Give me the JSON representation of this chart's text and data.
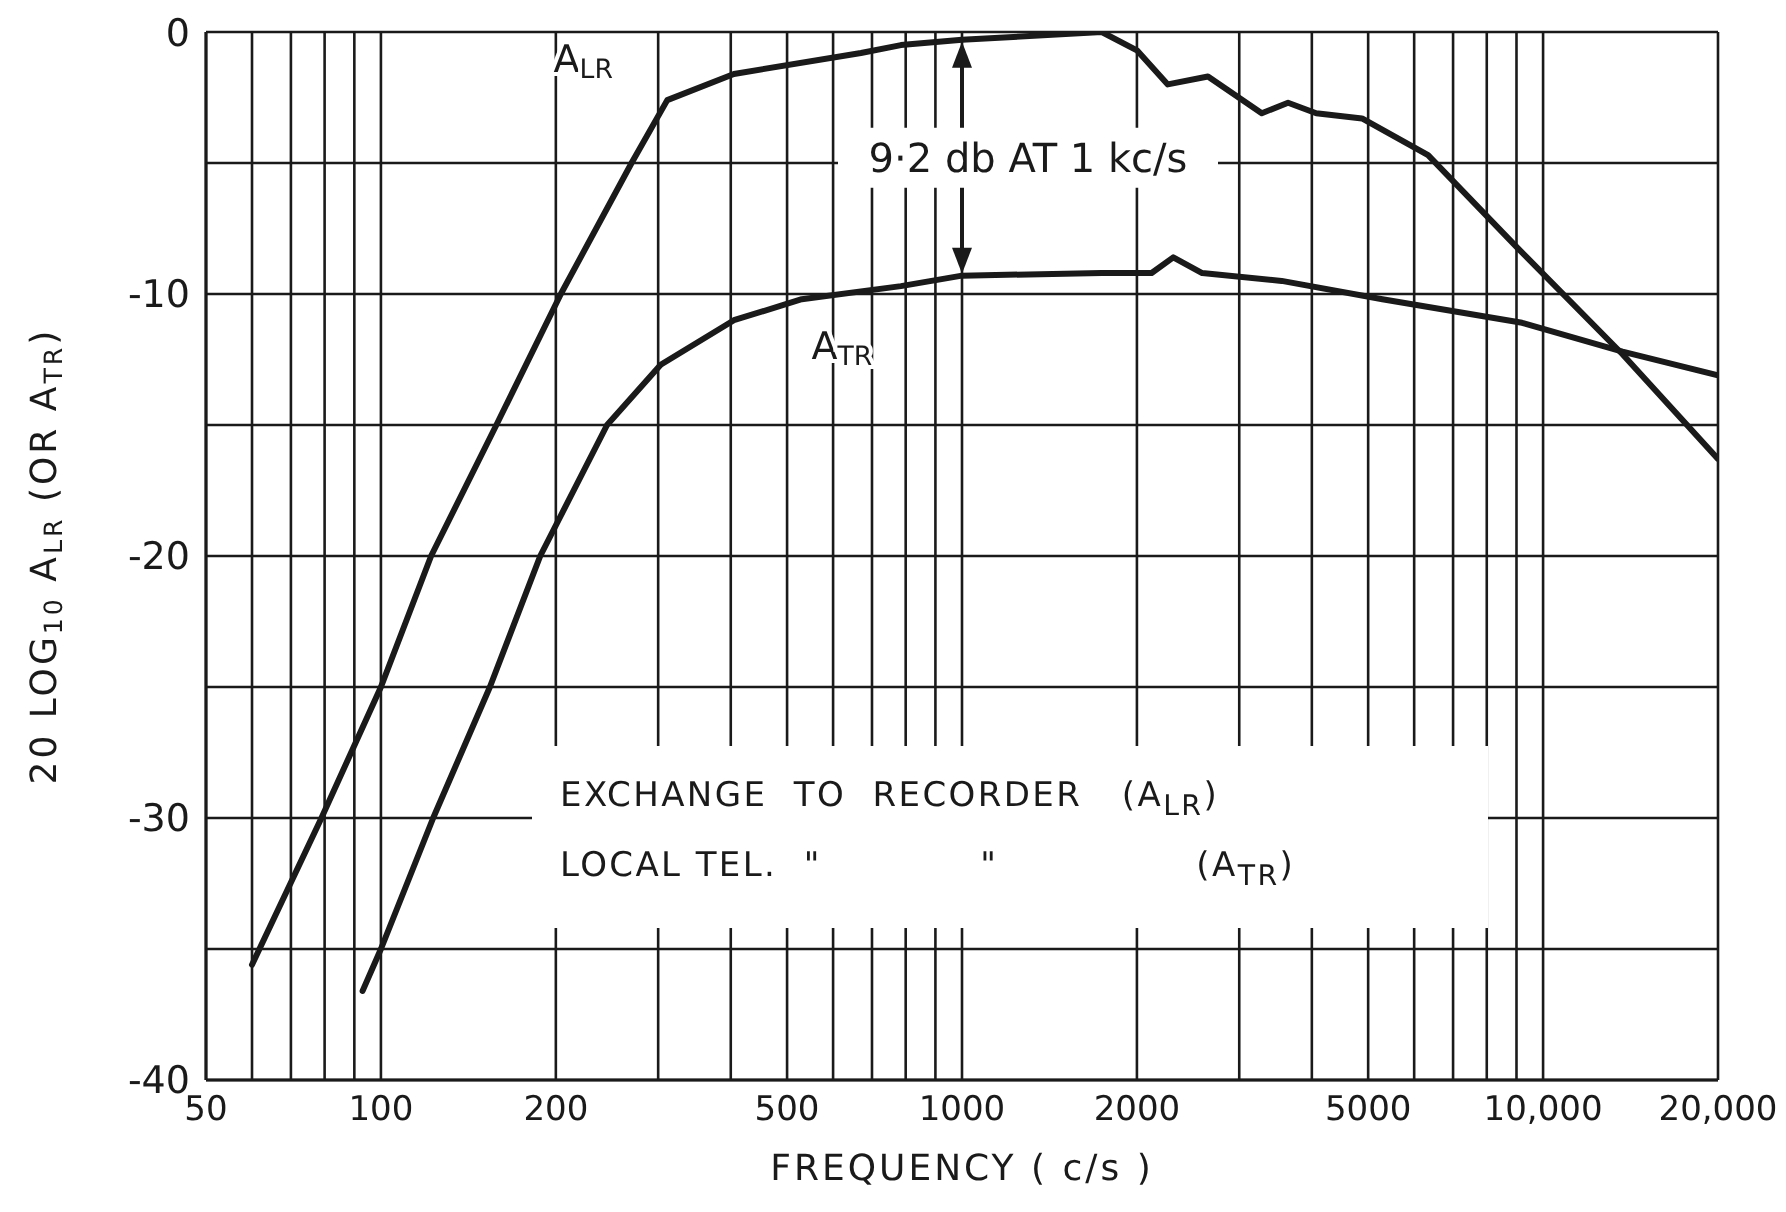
{
  "chart_data": {
    "type": "line",
    "xlabel": "FREQUENCY  ( c/s )",
    "ylabel": "20 LOG$_{10}$  A$_{LR}$ (OR A$_{TR}$)",
    "log": "x",
    "xlim": [
      50,
      20000
    ],
    "xticks": [
      50,
      {
        "value": 60,
        "label": null
      },
      {
        "value": 70,
        "label": null
      },
      {
        "value": 80,
        "label": null
      },
      {
        "value": 90,
        "label": null
      },
      100,
      200,
      {
        "value": 300,
        "label": null
      },
      {
        "value": 400,
        "label": null
      },
      500,
      {
        "value": 600,
        "label": null
      },
      {
        "value": 700,
        "label": null
      },
      {
        "value": 800,
        "label": null
      },
      {
        "value": 900,
        "label": null
      },
      1000,
      2000,
      {
        "value": 3000,
        "label": null
      },
      {
        "value": 4000,
        "label": null
      },
      5000,
      {
        "value": 6000,
        "label": null
      },
      {
        "value": 7000,
        "label": null
      },
      {
        "value": 8000,
        "label": null
      },
      {
        "value": 9000,
        "label": null
      },
      {
        "value": 10000,
        "label": "10,000"
      },
      {
        "value": 20000,
        "label": "20,000"
      }
    ],
    "ylim": [
      -40,
      0
    ],
    "yticks": [
      -40,
      {
        "value": -35,
        "label": null
      },
      -30,
      {
        "value": -25,
        "label": null
      },
      -20,
      {
        "value": -15,
        "label": null
      },
      -10,
      {
        "value": -5,
        "label": null
      },
      0
    ],
    "grid": true,
    "legend": false,
    "series": [
      {
        "name": "A$_{LR}$",
        "color": "#1a1a1a",
        "x": [
          60,
          79,
          100,
          122,
          158,
          204,
          270,
          311,
          405,
          670,
          785,
          1000,
          1740,
          2000,
          2260,
          2650,
          3280,
          3640,
          4070,
          4880,
          6340,
          9000,
          13700,
          20000
        ],
        "values": [
          -35.6,
          -30,
          -25,
          -20,
          -15,
          -10,
          -5,
          -2.6,
          -1.6,
          -0.8,
          -0.5,
          -0.3,
          0,
          -0.7,
          -2,
          -1.7,
          -3.1,
          -2.7,
          -3.1,
          -3.3,
          -4.7,
          -8.2,
          -12.3,
          -16.3
        ]
      },
      {
        "name": "A$_{TR}$",
        "color": "#1a1a1a",
        "x": [
          93,
          100,
          123,
          154,
          188,
          245,
          303,
          405,
          530,
          785,
          1000,
          1740,
          2120,
          2310,
          2590,
          3550,
          5290,
          9200,
          13700,
          20000
        ],
        "values": [
          -36.6,
          -35,
          -30,
          -25,
          -20,
          -15,
          -12.7,
          -11,
          -10.2,
          -9.7,
          -9.3,
          -9.2,
          -9.2,
          -8.6,
          -9.2,
          -9.5,
          -10.2,
          -11.1,
          -12.2,
          -13.1
        ]
      }
    ],
    "annotations": [
      "9·2 db AT 1 kc/s",
      "EXCHANGE  TO  RECORDER   (A$_{LR}$)",
      "LOCAL TEL.  \"            \"               (A$_{TR}$)"
    ]
  }
}
